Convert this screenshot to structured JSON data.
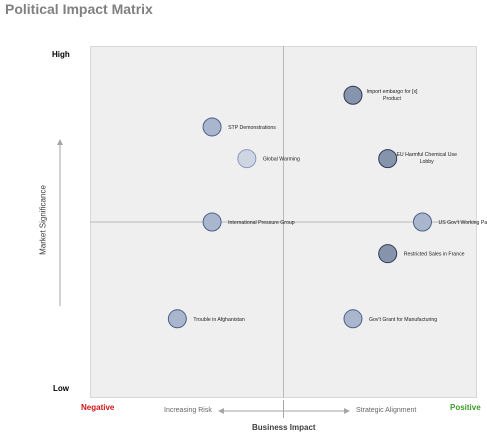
{
  "title": "Political Impact Matrix",
  "chart_data": {
    "type": "scatter",
    "title": "Political Impact Matrix",
    "xlabel": "Business Impact",
    "ylabel": "Market Significance",
    "x_axis": {
      "left_end": "Negative",
      "right_end": "Positive",
      "left_label": "Increasing Risk",
      "right_label": "Strategic Alignment",
      "left_end_color": "#d21414",
      "right_end_color": "#3f9a2a"
    },
    "y_axis": {
      "top": "High",
      "bottom": "Low"
    },
    "xlim": [
      -1,
      1
    ],
    "ylim": [
      -1,
      1
    ],
    "points": [
      {
        "label": "Import embargo for [x] Product",
        "label_lines": [
          "Import embargo for [x]",
          "Product"
        ],
        "x": 0.36,
        "y": 0.72,
        "style": "dark"
      },
      {
        "label": "STP Demonstrations",
        "label_lines": [
          "STP Demonstrations"
        ],
        "x": -0.37,
        "y": 0.54,
        "style": "medium"
      },
      {
        "label": "Global Warming",
        "label_lines": [
          "Global Warming"
        ],
        "x": -0.19,
        "y": 0.36,
        "style": "light"
      },
      {
        "label": "EU Harmful Chemical Use Lobby",
        "label_lines": [
          "EU Harmful Chemical Use",
          "Lobby"
        ],
        "x": 0.54,
        "y": 0.36,
        "style": "dark"
      },
      {
        "label": "International Pressure Group",
        "label_lines": [
          "International Pressure Group"
        ],
        "x": -0.37,
        "y": 0.0,
        "style": "medium"
      },
      {
        "label": "US Gov't Working Party",
        "label_lines": [
          "US Gov't Working Party"
        ],
        "x": 0.72,
        "y": 0.0,
        "style": "medium"
      },
      {
        "label": "Restricted Sales in France",
        "label_lines": [
          "Restricted Sales in France"
        ],
        "x": 0.54,
        "y": -0.18,
        "style": "dark"
      },
      {
        "label": "Trouble in Afghanistan",
        "label_lines": [
          "Trouble in Afghanistan"
        ],
        "x": -0.55,
        "y": -0.55,
        "style": "medium"
      },
      {
        "label": "Gov't Grant for Manufacturing",
        "label_lines": [
          "Gov't Grant for Manufacturing"
        ],
        "x": 0.36,
        "y": -0.55,
        "style": "medium"
      }
    ],
    "styles": {
      "dark": {
        "fill": "#8c9ab2",
        "stroke": "#2e3a55"
      },
      "medium": {
        "fill": "#b2bfd6",
        "stroke": "#4a5f88"
      },
      "light": {
        "fill": "#d9e1ee",
        "stroke": "#8a9bbd"
      }
    },
    "grid": false,
    "legend": "none"
  }
}
